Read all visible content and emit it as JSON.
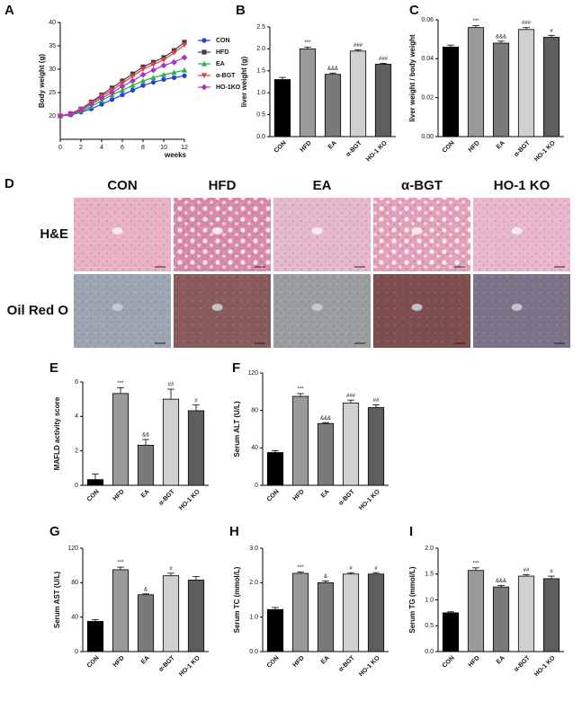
{
  "chart_data": [
    {
      "type": "line",
      "panel": "A",
      "xlabel": "weeks",
      "ylabel": "Body weight (g)",
      "x": [
        0,
        1,
        2,
        3,
        4,
        5,
        6,
        7,
        8,
        9,
        10,
        11,
        12
      ],
      "xlim": [
        0,
        12
      ],
      "xticks": [
        0,
        2,
        4,
        6,
        8,
        10,
        12
      ],
      "ylim": [
        15,
        40
      ],
      "yticks": [
        20,
        25,
        30,
        35,
        40
      ],
      "series": [
        {
          "name": "CON",
          "color": "#1f3fe0",
          "marker": "circle",
          "values": [
            20,
            20.2,
            20.8,
            21.5,
            22.5,
            23.5,
            24.5,
            25.5,
            26.5,
            27.2,
            27.8,
            28.2,
            28.6
          ]
        },
        {
          "name": "HFD",
          "color": "#404040",
          "marker": "square",
          "values": [
            20,
            20.5,
            21.5,
            23,
            24.5,
            26,
            27.5,
            29,
            30.5,
            31.5,
            32.5,
            34,
            35.8
          ]
        },
        {
          "name": "EA",
          "color": "#22b33a",
          "marker": "triangle",
          "values": [
            20,
            20.3,
            21,
            22,
            23.3,
            24.5,
            25.5,
            26.5,
            27.5,
            28.2,
            28.8,
            29.3,
            29.8
          ]
        },
        {
          "name": "α-BGT",
          "color": "#e04040",
          "marker": "triangle-down",
          "values": [
            20,
            20.4,
            21.4,
            22.8,
            24.2,
            25.5,
            27,
            28.5,
            30,
            31,
            32,
            33.5,
            35.2
          ]
        },
        {
          "name": "HO-1KO",
          "color": "#b030c0",
          "marker": "diamond",
          "values": [
            20,
            20.3,
            21.2,
            22.5,
            23.8,
            25,
            26.3,
            27.5,
            28.8,
            29.8,
            30.8,
            31.5,
            32.5
          ]
        }
      ]
    },
    {
      "type": "bar",
      "panel": "B",
      "ylabel": "liver weight (g)",
      "categories": [
        "CON",
        "HFD",
        "EA",
        "α-BGT",
        "HO-1 KO"
      ],
      "values": [
        1.3,
        2.0,
        1.42,
        1.95,
        1.65
      ],
      "errors": [
        0.05,
        0.04,
        0.03,
        0.03,
        0.02
      ],
      "annotations": [
        null,
        "***",
        "&&&",
        "###",
        "###"
      ],
      "colors": [
        "#000000",
        "#9a9a9a",
        "#7a7a7a",
        "#d0d0d0",
        "#5e5e5e"
      ],
      "ylim": [
        0,
        2.5
      ],
      "yticks": [
        {
          "value": 0,
          "label": "0.0"
        },
        0.5,
        {
          "value": 1,
          "label": "1.0"
        },
        1.5,
        {
          "value": 2,
          "label": "2.0"
        },
        2.5
      ]
    },
    {
      "type": "bar",
      "panel": "C",
      "ylabel": "liver weight / body weight",
      "categories": [
        "CON",
        "HFD",
        "EA",
        "α-BGT",
        "HO-1 KO"
      ],
      "values": [
        0.046,
        0.056,
        0.048,
        0.055,
        0.051
      ],
      "errors": [
        0.001,
        0.001,
        0.001,
        0.001,
        0.001
      ],
      "annotations": [
        null,
        "***",
        "&&&",
        "###",
        "#"
      ],
      "colors": [
        "#000000",
        "#9a9a9a",
        "#7a7a7a",
        "#d0d0d0",
        "#5e5e5e"
      ],
      "ylim": [
        0,
        0.06
      ],
      "yticks": [
        {
          "value": 0,
          "label": "0.00"
        },
        0.02,
        0.04,
        0.06
      ]
    },
    {
      "type": "image_grid",
      "panel": "D",
      "columns": [
        "CON",
        "HFD",
        "EA",
        "α-BGT",
        "HO-1 KO"
      ],
      "rows": [
        "H&E",
        "Oil Red O"
      ]
    },
    {
      "type": "bar",
      "panel": "E",
      "ylabel": "MAFLD activity score",
      "categories": [
        "CON",
        "HFD",
        "EA",
        "α-BGT",
        "HO-1 KO"
      ],
      "values": [
        0.33,
        5.33,
        2.33,
        5.0,
        4.33
      ],
      "errors": [
        0.33,
        0.33,
        0.33,
        0.58,
        0.33
      ],
      "annotations": [
        null,
        "***",
        "&&",
        "##",
        "#"
      ],
      "colors": [
        "#000000",
        "#9a9a9a",
        "#7a7a7a",
        "#d0d0d0",
        "#5e5e5e"
      ],
      "ylim": [
        0,
        6
      ],
      "yticks": [
        0,
        2,
        4,
        6
      ]
    },
    {
      "type": "bar",
      "panel": "F",
      "ylabel": "Serum ALT (U/L)",
      "categories": [
        "CON",
        "HFD",
        "EA",
        "α-BGT",
        "HO-1 KO"
      ],
      "values": [
        35,
        95,
        66,
        88,
        83
      ],
      "errors": [
        2,
        3,
        1,
        3,
        3
      ],
      "annotations": [
        null,
        "***",
        "&&&",
        "###",
        "##"
      ],
      "colors": [
        "#000000",
        "#9a9a9a",
        "#7a7a7a",
        "#d0d0d0",
        "#5e5e5e"
      ],
      "ylim": [
        0,
        120
      ],
      "yticks": [
        0,
        40,
        80,
        120
      ]
    },
    {
      "type": "bar",
      "panel": "G",
      "ylabel": "Serum AST (U/L)",
      "categories": [
        "CON",
        "HFD",
        "EA",
        "α-BGT",
        "HO-1 KO"
      ],
      "values": [
        35,
        95,
        66,
        88,
        83
      ],
      "errors": [
        2,
        3,
        1,
        3,
        4
      ],
      "annotations": [
        null,
        "***",
        "&",
        "#",
        null
      ],
      "colors": [
        "#000000",
        "#9a9a9a",
        "#7a7a7a",
        "#d0d0d0",
        "#5e5e5e"
      ],
      "ylim": [
        0,
        120
      ],
      "yticks": [
        0,
        40,
        80,
        120
      ]
    },
    {
      "type": "bar",
      "panel": "H",
      "ylabel": "Serum TC (mmol/L)",
      "categories": [
        "CON",
        "HFD",
        "EA",
        "α-BGT",
        "HO-1 KO"
      ],
      "values": [
        1.22,
        2.27,
        2.0,
        2.25,
        2.25
      ],
      "errors": [
        0.06,
        0.04,
        0.05,
        0.04,
        0.04
      ],
      "annotations": [
        null,
        "***",
        "&",
        "#",
        "#"
      ],
      "colors": [
        "#000000",
        "#9a9a9a",
        "#7a7a7a",
        "#d0d0d0",
        "#5e5e5e"
      ],
      "ylim": [
        0,
        3
      ],
      "yticks": [
        {
          "value": 0,
          "label": "0.0"
        },
        {
          "value": 1,
          "label": "1.0"
        },
        {
          "value": 2,
          "label": "2.0"
        },
        {
          "value": 3,
          "label": "3.0"
        }
      ]
    },
    {
      "type": "bar",
      "panel": "I",
      "ylabel": "Serum TG (mmol/L)",
      "categories": [
        "CON",
        "HFD",
        "EA",
        "α-BGT",
        "HO-1 KO"
      ],
      "values": [
        0.75,
        1.57,
        1.25,
        1.46,
        1.41
      ],
      "errors": [
        0.02,
        0.05,
        0.03,
        0.03,
        0.05
      ],
      "annotations": [
        null,
        "***",
        "&&&",
        "##",
        "#"
      ],
      "colors": [
        "#000000",
        "#9a9a9a",
        "#7a7a7a",
        "#d0d0d0",
        "#5e5e5e"
      ],
      "ylim": [
        0,
        2
      ],
      "yticks": [
        {
          "value": 0,
          "label": "0.0"
        },
        0.5,
        {
          "value": 1,
          "label": "1.0"
        },
        1.5,
        {
          "value": 2,
          "label": "2.0"
        }
      ]
    }
  ]
}
